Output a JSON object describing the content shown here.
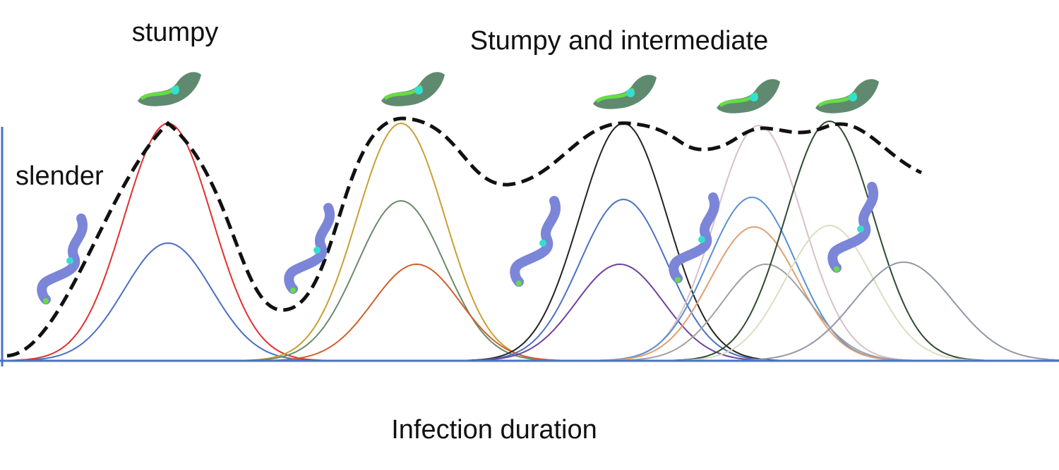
{
  "labels": {
    "stumpy": "stumpy",
    "stumpy_intermediate": "Stumpy and intermediate",
    "slender": "slender",
    "x_axis": "Infection duration"
  }
}
